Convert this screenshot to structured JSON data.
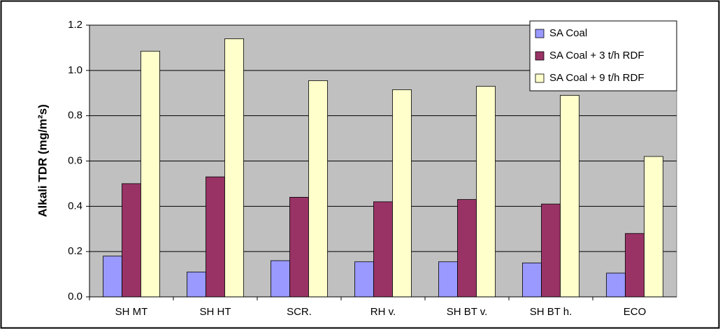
{
  "chart_data": {
    "type": "bar",
    "y_axis_label": "Alkali TDR (mg/m²s)",
    "categories": [
      "SH MT",
      "SH HT",
      "SCR.",
      "RH v.",
      "SH BT v.",
      "SH BT h.",
      "ECO"
    ],
    "series": [
      {
        "name": "SA Coal",
        "color": "#9999ff",
        "values": [
          0.18,
          0.11,
          0.16,
          0.155,
          0.155,
          0.15,
          0.105
        ]
      },
      {
        "name": "SA Coal + 3 t/h RDF",
        "color": "#993366",
        "values": [
          0.5,
          0.53,
          0.44,
          0.42,
          0.43,
          0.41,
          0.28
        ]
      },
      {
        "name": "SA Coal + 9 t/h RDF",
        "color": "#ffffcc",
        "values": [
          1.085,
          1.14,
          0.955,
          0.915,
          0.93,
          0.89,
          0.62
        ]
      }
    ],
    "ylim": [
      0,
      1.2
    ],
    "yticks": [
      {
        "value": 0,
        "label": "0.0"
      },
      0.2,
      0.4,
      0.6,
      0.8,
      {
        "value": 1,
        "label": "1.0"
      },
      1.2
    ],
    "grid": true,
    "legend": "top-right",
    "plot_background": "#c0c0c0"
  }
}
